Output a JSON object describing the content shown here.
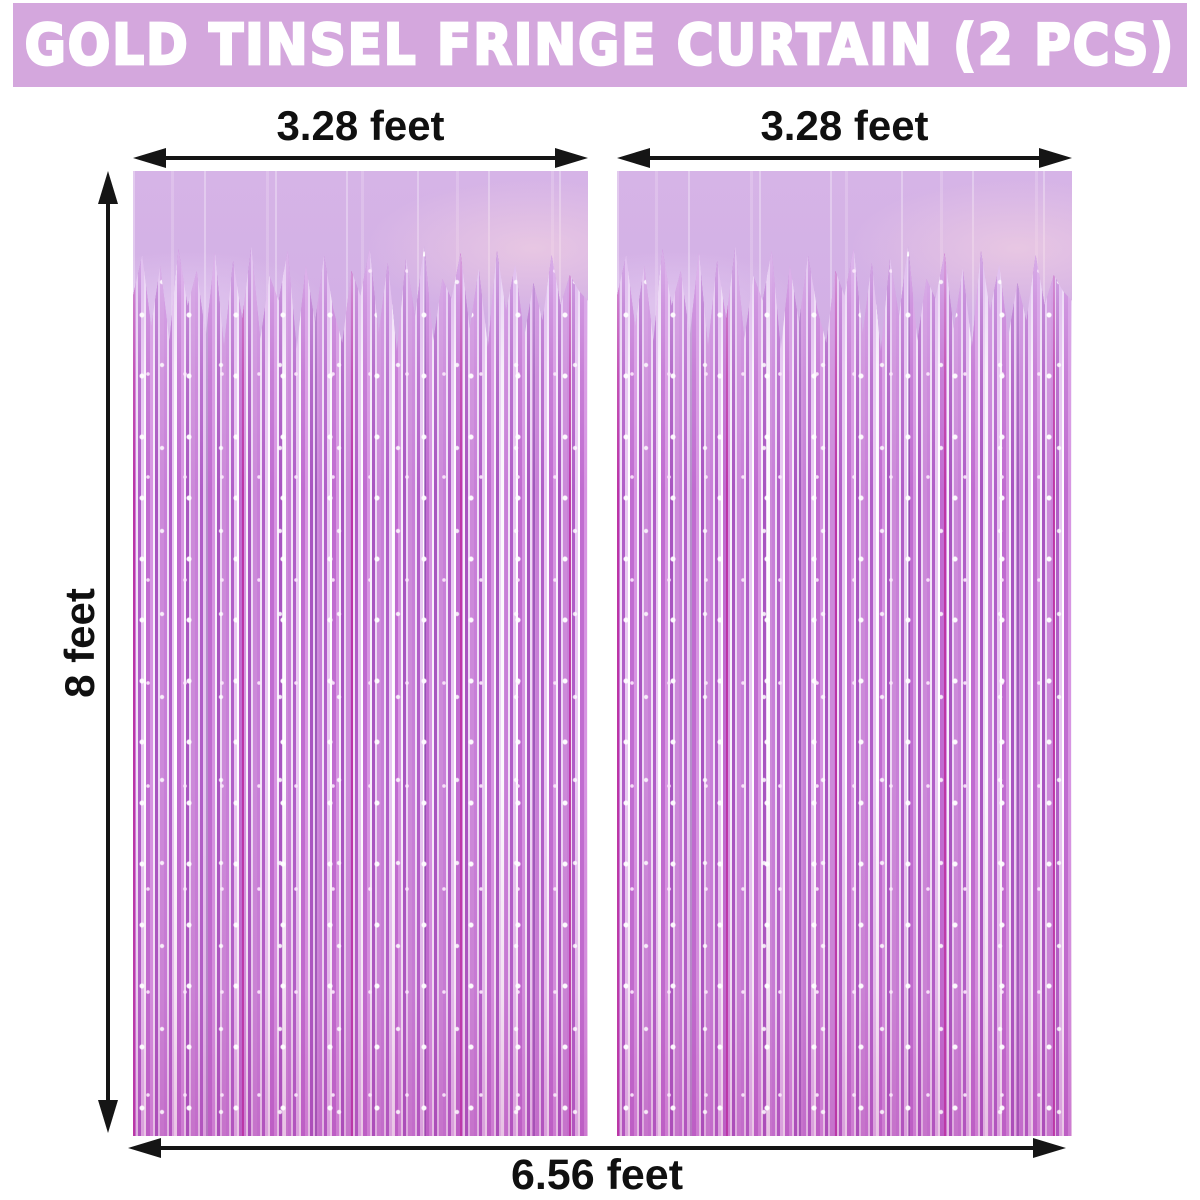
{
  "banner": {
    "title": "GOLD TINSEL FRINGE CURTAIN (2 PCS)"
  },
  "labels": {
    "left_panel_width": "3.28 feet",
    "right_panel_width": "3.28 feet",
    "panel_height": "8 feet",
    "total_width": "6.56 feet"
  },
  "colors": {
    "background": "#ffffff",
    "banner_bg": "#d4a7dd",
    "banner_text": "#ffffff",
    "label_text": "#101010",
    "arrow": "#151515",
    "curtain_foil": "#cda8e2",
    "strand_purple": "#b05ec7",
    "strand_magenta": "#ba2ca0",
    "strand_light": "#f2e3f7"
  }
}
